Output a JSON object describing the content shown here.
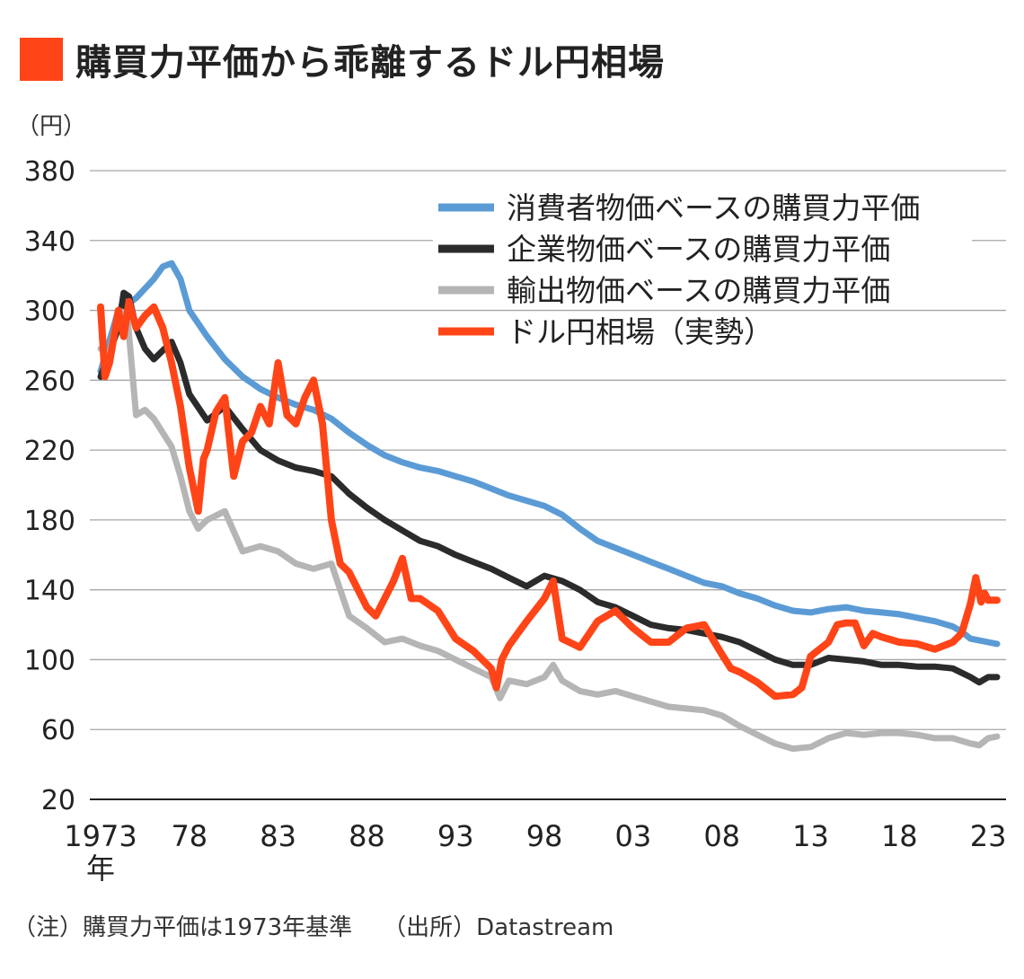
{
  "title": "購買力平価から乖離するドル円相場",
  "unit_label": "（円）",
  "note": "（注）購買力平価は1973年基準",
  "source": "（出所）Datastream",
  "colors": {
    "accent": "#ff4417",
    "cpi": "#5b9bd5",
    "ppi": "#2b2b2b",
    "export": "#b5b5b5",
    "usdjpy": "#ff4417",
    "grid": "#a6a6a6"
  },
  "chart_data": {
    "type": "line",
    "title": "購買力平価から乖離するドル円相場",
    "ylabel": "（円）",
    "xlabel": "",
    "ylim": [
      20,
      380
    ],
    "yticks": [
      20,
      60,
      100,
      140,
      180,
      220,
      260,
      300,
      340,
      380
    ],
    "ytick_labels": [
      "20",
      "60",
      "100",
      "140",
      "180",
      "220",
      "260",
      "300",
      "340",
      "380"
    ],
    "xlim": [
      1973,
      2023.5
    ],
    "xticks": [
      1973,
      1978,
      1983,
      1988,
      1993,
      1998,
      2003,
      2008,
      2013,
      2018,
      2023
    ],
    "xtick_labels": [
      "1973",
      "78",
      "83",
      "88",
      "93",
      "98",
      "03",
      "08",
      "13",
      "18",
      "23"
    ],
    "xtick_suffix": "年",
    "legend": "top-right",
    "series": [
      {
        "name": "消費者物価ベースの購買力平価",
        "color": "#5b9bd5",
        "x": [
          1973,
          1974,
          1975,
          1976,
          1976.5,
          1977,
          1977.5,
          1978,
          1979,
          1980,
          1981,
          1982,
          1983,
          1984,
          1985,
          1986,
          1987,
          1988,
          1989,
          1990,
          1991,
          1992,
          1993,
          1994,
          1995,
          1996,
          1997,
          1998,
          1999,
          2000,
          2001,
          2002,
          2003,
          2004,
          2005,
          2006,
          2007,
          2008,
          2009,
          2010,
          2011,
          2012,
          2013,
          2014,
          2015,
          2016,
          2017,
          2018,
          2019,
          2020,
          2021,
          2021.5,
          2022,
          2023,
          2023.5
        ],
        "values": [
          265,
          300,
          307,
          318,
          325,
          327,
          318,
          300,
          285,
          272,
          262,
          255,
          250,
          246,
          243,
          238,
          230,
          223,
          217,
          213,
          210,
          208,
          205,
          202,
          198,
          194,
          191,
          188,
          183,
          175,
          168,
          164,
          160,
          156,
          152,
          148,
          144,
          142,
          138,
          135,
          131,
          128,
          127,
          129,
          130,
          128,
          127,
          126,
          124,
          122,
          119,
          116,
          112,
          110,
          109
        ]
      },
      {
        "name": "企業物価ベースの購買力平価",
        "color": "#2b2b2b",
        "x": [
          1973,
          1974,
          1974.3,
          1974.6,
          1975,
          1975.5,
          1976,
          1977,
          1977.5,
          1978,
          1979,
          1980,
          1981,
          1982,
          1983,
          1984,
          1985,
          1986,
          1987,
          1988,
          1989,
          1990,
          1991,
          1992,
          1993,
          1994,
          1995,
          1996,
          1997,
          1998,
          1999,
          2000,
          2001,
          2002,
          2003,
          2004,
          2005,
          2006,
          2007,
          2008,
          2009,
          2010,
          2011,
          2012,
          2013,
          2014,
          2015,
          2016,
          2017,
          2018,
          2019,
          2020,
          2021,
          2022,
          2022.5,
          2023,
          2023.5
        ],
        "values": [
          262,
          290,
          310,
          308,
          290,
          278,
          272,
          282,
          270,
          252,
          237,
          245,
          232,
          220,
          214,
          210,
          208,
          205,
          195,
          187,
          180,
          174,
          168,
          165,
          160,
          156,
          152,
          147,
          142,
          148,
          145,
          140,
          133,
          130,
          125,
          120,
          118,
          117,
          115,
          113,
          110,
          105,
          100,
          97,
          97,
          101,
          100,
          99,
          97,
          97,
          96,
          96,
          95,
          90,
          87,
          90,
          90
        ]
      },
      {
        "name": "輸出物価ベースの購買力平価",
        "color": "#b5b5b5",
        "x": [
          1973,
          1973.5,
          1974,
          1974.5,
          1975,
          1975.5,
          1976,
          1977,
          1977.5,
          1978,
          1978.5,
          1979,
          1980,
          1981,
          1982,
          1983,
          1984,
          1985,
          1986,
          1987,
          1988,
          1989,
          1990,
          1991,
          1992,
          1993,
          1994,
          1995,
          1995.5,
          1996,
          1997,
          1998,
          1998.5,
          1999,
          2000,
          2001,
          2002,
          2003,
          2004,
          2005,
          2006,
          2007,
          2008,
          2009,
          2010,
          2011,
          2012,
          2013,
          2014,
          2015,
          2016,
          2017,
          2018,
          2019,
          2020,
          2021,
          2022,
          2022.5,
          2023,
          2023.5
        ],
        "values": [
          278,
          275,
          300,
          298,
          240,
          243,
          238,
          222,
          205,
          185,
          175,
          180,
          185,
          162,
          165,
          162,
          155,
          152,
          155,
          125,
          118,
          110,
          112,
          108,
          105,
          100,
          95,
          90,
          78,
          88,
          86,
          90,
          97,
          88,
          82,
          80,
          82,
          79,
          76,
          73,
          72,
          71,
          68,
          62,
          57,
          52,
          49,
          50,
          55,
          58,
          57,
          58,
          58,
          57,
          55,
          55,
          52,
          51,
          55,
          56
        ]
      },
      {
        "name": "ドル円相場（実勢）",
        "color": "#ff4417",
        "x": [
          1973,
          1973.25,
          1973.5,
          1974,
          1974.3,
          1974.6,
          1975,
          1975.5,
          1976,
          1976.5,
          1977,
          1977.5,
          1978,
          1978.5,
          1978.8,
          1979,
          1979.5,
          1980,
          1980.5,
          1981,
          1981.5,
          1982,
          1982.5,
          1983,
          1983.5,
          1984,
          1984.5,
          1985,
          1985.5,
          1986,
          1986.5,
          1987,
          1987.5,
          1988,
          1988.5,
          1989,
          1989.5,
          1990,
          1990.5,
          1991,
          1992,
          1993,
          1994,
          1995,
          1995.3,
          1995.6,
          1996,
          1997,
          1998,
          1998.5,
          1999,
          2000,
          2001,
          2002,
          2003,
          2004,
          2005,
          2006,
          2007,
          2008,
          2008.5,
          2009,
          2010,
          2011,
          2012,
          2012.5,
          2013,
          2014,
          2014.5,
          2015,
          2015.5,
          2016,
          2016.5,
          2017,
          2018,
          2019,
          2020,
          2021,
          2021.5,
          2022,
          2022.3,
          2022.6,
          2022.8,
          2023,
          2023.5
        ],
        "values": [
          302,
          262,
          270,
          300,
          285,
          305,
          290,
          297,
          302,
          290,
          270,
          245,
          210,
          185,
          215,
          220,
          242,
          250,
          205,
          225,
          230,
          245,
          235,
          270,
          240,
          235,
          250,
          260,
          235,
          180,
          155,
          150,
          140,
          130,
          125,
          135,
          145,
          158,
          135,
          135,
          128,
          112,
          105,
          95,
          84,
          100,
          108,
          122,
          135,
          145,
          112,
          107,
          122,
          128,
          118,
          110,
          110,
          118,
          120,
          103,
          95,
          93,
          87,
          79,
          80,
          84,
          102,
          110,
          120,
          121,
          121,
          108,
          115,
          113,
          110,
          109,
          106,
          110,
          115,
          132,
          147,
          133,
          138,
          134,
          134
        ]
      }
    ]
  }
}
